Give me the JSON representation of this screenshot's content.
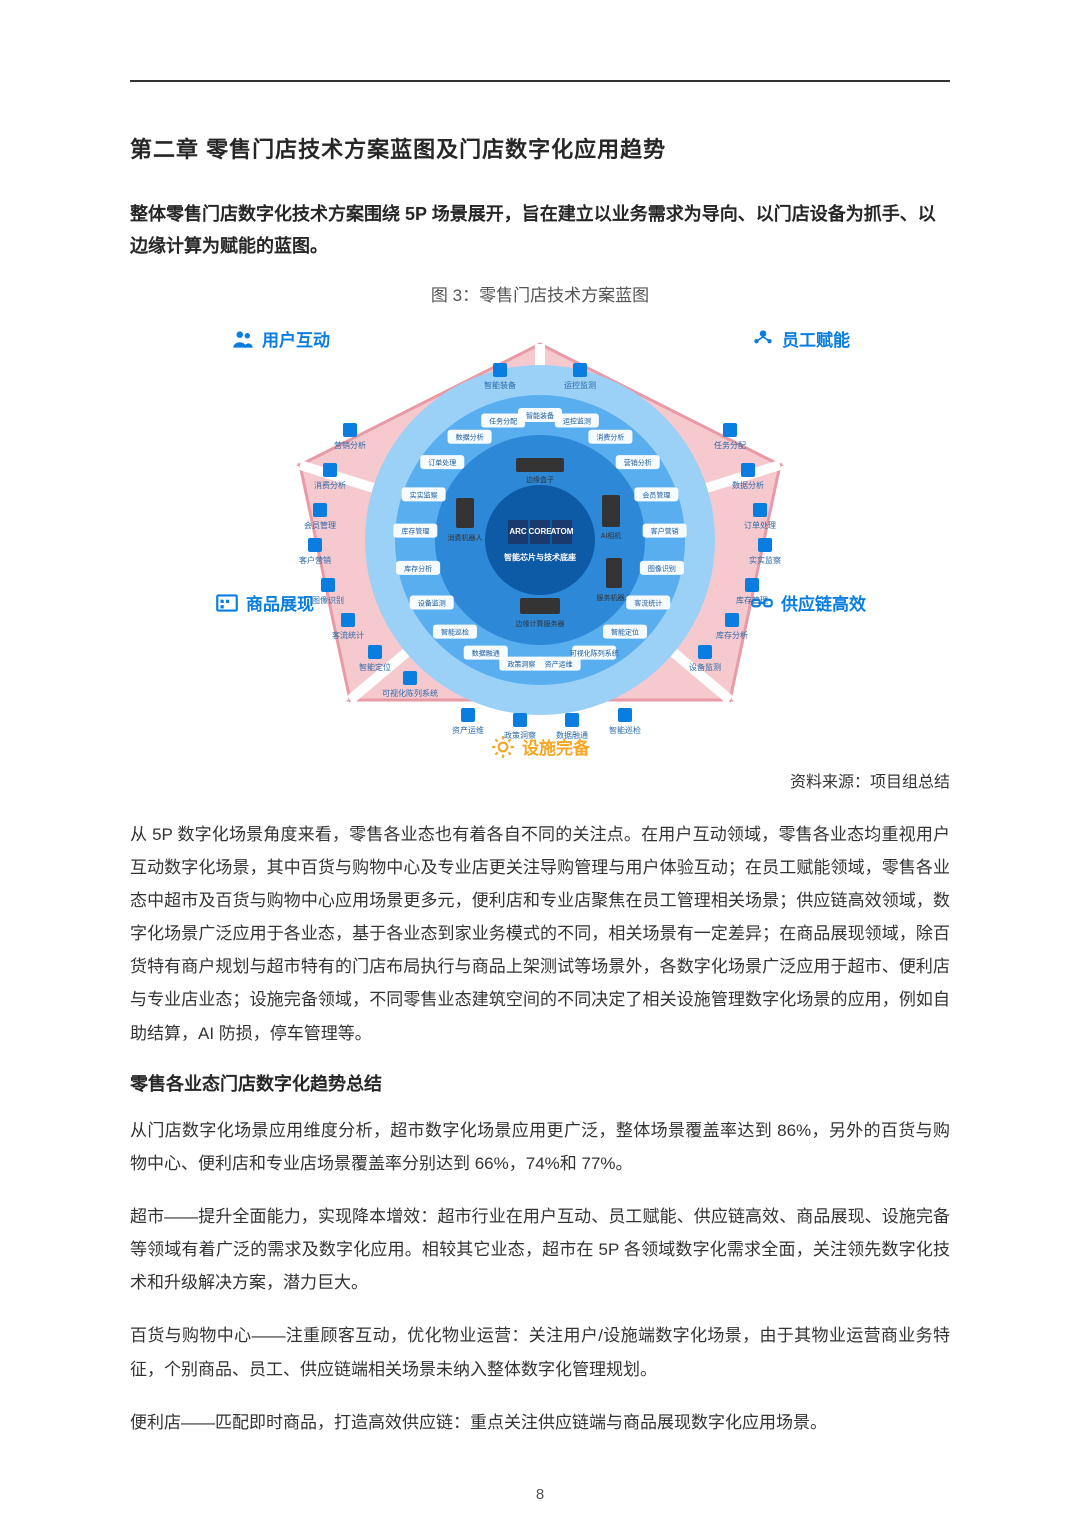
{
  "page_number": "8",
  "chapter_title": "第二章  零售门店技术方案蓝图及门店数字化应用趋势",
  "lead": "整体零售门店数字化技术方案围绕 5P 场景展开，旨在建立以业务需求为导向、以门店设备为抓手、以边缘计算为赋能的蓝图。",
  "figure_caption": "图 3：零售门店技术方案蓝图",
  "source_line": "资料来源：项目组总结",
  "corners": {
    "top_left": {
      "label": "用户互动",
      "color": "#0a7de0",
      "icon": "users"
    },
    "top_right": {
      "label": "员工赋能",
      "color": "#0a7de0",
      "icon": "staff"
    },
    "mid_left": {
      "label": "商品展现",
      "color": "#0a7de0",
      "icon": "product"
    },
    "mid_right": {
      "label": "供应链高效",
      "color": "#0a7de0",
      "icon": "chain"
    },
    "bottom": {
      "label": "设施完备",
      "color": "#f6a623",
      "icon": "gear"
    }
  },
  "diagram": {
    "type": "infographic",
    "aspect": "pentagon with concentric rings",
    "bg": "#ffffff",
    "pentagon_fill": "#f6c9cf",
    "pentagon_stroke": "#e89aa6",
    "ring_colors": [
      "#0d5aa7",
      "#2d88d8",
      "#58aeee",
      "#9bd0f7"
    ],
    "center_labels": [
      "智能芯片与技术底座"
    ],
    "center_chip_labels": [
      "ARC",
      "CORE",
      "ATOM"
    ],
    "inner_ring_devices": [
      "边缘盒子",
      "边缘计算服务器",
      "消费机器人",
      "AI相机",
      "服务机器人"
    ],
    "middle_ring_labels": [
      "智能装备",
      "运控监测",
      "消费分析",
      "营销分析",
      "会员管理",
      "客户营销",
      "图像识别",
      "客流统计",
      "智能定位",
      "可视化陈列系统",
      "资产运维",
      "政策洞察",
      "数据融通",
      "智能巡检",
      "设备监测",
      "库存分析",
      "库存管理",
      "实实监察",
      "订单处理",
      "数据分析",
      "任务分配"
    ],
    "outer_nodes_top": [
      "智能装备",
      "运控监测"
    ],
    "outer_nodes_left": [
      "营销分析",
      "消费分析",
      "会员管理",
      "客户营销",
      "图像识别",
      "客流统计",
      "智能定位",
      "可视化陈列系统"
    ],
    "outer_nodes_bottom": [
      "资产运维",
      "政策洞察",
      "数据融通",
      "智能巡检"
    ],
    "outer_nodes_right": [
      "任务分配",
      "数据分析",
      "订单处理",
      "实实监察",
      "库存管理",
      "库存分析",
      "设备监测"
    ]
  },
  "body1": "从 5P 数字化场景角度来看，零售各业态也有着各自不同的关注点。在用户互动领域，零售各业态均重视用户互动数字化场景，其中百货与购物中心及专业店更关注导购管理与用户体验互动；在员工赋能领域，零售各业态中超市及百货与购物中心应用场景更多元，便利店和专业店聚焦在员工管理相关场景；供应链高效领域，数字化场景广泛应用于各业态，基于各业态到家业务模式的不同，相关场景有一定差异；在商品展现领域，除百货特有商户规划与超市特有的门店布局执行与商品上架测试等场景外，各数字化场景广泛应用于超市、便利店与专业店业态；设施完备领域，不同零售业态建筑空间的不同决定了相关设施管理数字化场景的应用，例如自助结算，AI 防损，停车管理等。",
  "sub_heading": "零售各业态门店数字化趋势总结",
  "body2": "从门店数字化场景应用维度分析，超市数字化场景应用更广泛，整体场景覆盖率达到 86%，另外的百货与购物中心、便利店和专业店场景覆盖率分别达到 66%，74%和 77%。",
  "body3": "超市——提升全面能力，实现降本增效：超市行业在用户互动、员工赋能、供应链高效、商品展现、设施完备等领域有着广泛的需求及数字化应用。相较其它业态，超市在 5P 各领域数字化需求全面，关注领先数字化技术和升级解决方案，潜力巨大。",
  "body4": "百货与购物中心——注重顾客互动，优化物业运营：关注用户/设施端数字化场景，由于其物业运营商业务特征，个别商品、员工、供应链端相关场景未纳入整体数字化管理规划。",
  "body5": "便利店——匹配即时商品，打造高效供应链：重点关注供应链端与商品展现数字化应用场景。"
}
